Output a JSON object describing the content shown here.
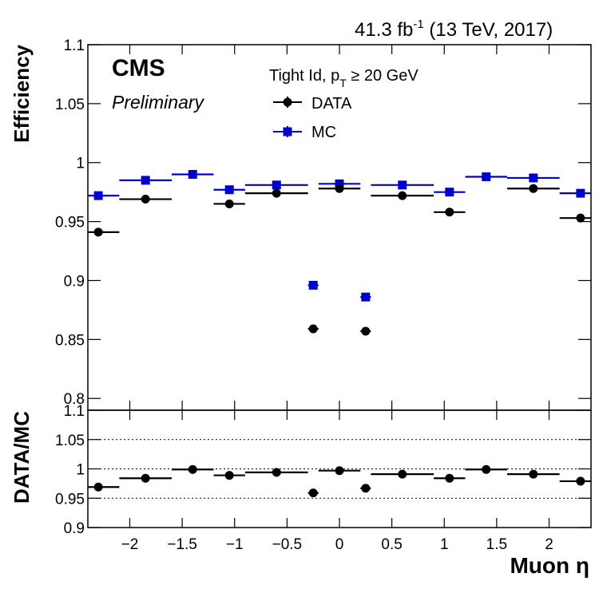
{
  "header": {
    "lumi": "41.3 fb",
    "lumi_exp": "-1",
    "energy": " (13 TeV, 2017)"
  },
  "branding": {
    "experiment": "CMS",
    "status": "Preliminary"
  },
  "legend": {
    "title_main": "Tight Id, p",
    "title_sub": "T",
    "title_rest": " ≥ 20 GeV",
    "entries": [
      "DATA",
      "MC"
    ],
    "placement": "top-center"
  },
  "colors": {
    "data": "#000000",
    "mc": "#0000cc"
  },
  "chart_data": [
    {
      "type": "scatter",
      "panel": "efficiency",
      "ylabel": "Efficiency",
      "ylim": [
        0.79,
        1.1
      ],
      "xlim": [
        -2.4,
        2.4
      ],
      "yticks": [
        "0.8",
        "0.85",
        "0.9",
        "0.95",
        "1",
        "1.05",
        "1.1"
      ],
      "series": [
        {
          "name": "DATA",
          "points": [
            {
              "x": -2.3,
              "xlo": -2.4,
              "xhi": -2.1,
              "y": 0.941
            },
            {
              "x": -1.85,
              "xlo": -2.1,
              "xhi": -1.6,
              "y": 0.969
            },
            {
              "x": -1.05,
              "xlo": -1.2,
              "xhi": -0.9,
              "y": 0.965
            },
            {
              "x": -0.6,
              "xlo": -0.9,
              "xhi": -0.3,
              "y": 0.974
            },
            {
              "x": -0.25,
              "xlo": -0.3,
              "xhi": -0.2,
              "y": 0.859
            },
            {
              "x": 0.0,
              "xlo": -0.2,
              "xhi": 0.2,
              "y": 0.978
            },
            {
              "x": 0.25,
              "xlo": 0.2,
              "xhi": 0.3,
              "y": 0.857
            },
            {
              "x": 0.6,
              "xlo": 0.3,
              "xhi": 0.9,
              "y": 0.972
            },
            {
              "x": 1.05,
              "xlo": 0.9,
              "xhi": 1.2,
              "y": 0.958
            },
            {
              "x": 1.85,
              "xlo": 1.6,
              "xhi": 2.1,
              "y": 0.978
            },
            {
              "x": 2.3,
              "xlo": 2.1,
              "xhi": 2.4,
              "y": 0.953
            }
          ]
        },
        {
          "name": "MC",
          "points": [
            {
              "x": -2.3,
              "xlo": -2.4,
              "xhi": -2.1,
              "y": 0.972
            },
            {
              "x": -1.85,
              "xlo": -2.1,
              "xhi": -1.6,
              "y": 0.985
            },
            {
              "x": -1.4,
              "xlo": -1.6,
              "xhi": -1.2,
              "y": 0.99
            },
            {
              "x": -1.05,
              "xlo": -1.2,
              "xhi": -0.9,
              "y": 0.977
            },
            {
              "x": -0.6,
              "xlo": -0.9,
              "xhi": -0.3,
              "y": 0.981
            },
            {
              "x": -0.25,
              "xlo": -0.3,
              "xhi": -0.2,
              "y": 0.896
            },
            {
              "x": 0.0,
              "xlo": -0.2,
              "xhi": 0.2,
              "y": 0.982
            },
            {
              "x": 0.25,
              "xlo": 0.2,
              "xhi": 0.3,
              "y": 0.886
            },
            {
              "x": 0.6,
              "xlo": 0.3,
              "xhi": 0.9,
              "y": 0.981
            },
            {
              "x": 1.05,
              "xlo": 0.9,
              "xhi": 1.2,
              "y": 0.975
            },
            {
              "x": 1.4,
              "xlo": 1.2,
              "xhi": 1.6,
              "y": 0.988
            },
            {
              "x": 1.85,
              "xlo": 1.6,
              "xhi": 2.1,
              "y": 0.987
            },
            {
              "x": 2.3,
              "xlo": 2.1,
              "xhi": 2.4,
              "y": 0.974
            }
          ]
        }
      ]
    },
    {
      "type": "scatter",
      "panel": "ratio",
      "ylabel": "DATA/MC",
      "xlabel": "Muon η",
      "ylim": [
        0.9,
        1.1
      ],
      "xlim": [
        -2.4,
        2.4
      ],
      "yticks": [
        "0.9",
        "0.95",
        "1",
        "1.05",
        "1.1"
      ],
      "xticks": [
        "−2",
        "−1.5",
        "−1",
        "−0.5",
        "0",
        "0.5",
        "1",
        "1.5",
        "2"
      ],
      "grid_lines_y": [
        0.95,
        1.0,
        1.05
      ],
      "series": [
        {
          "name": "DATA/MC",
          "points": [
            {
              "x": -2.3,
              "xlo": -2.4,
              "xhi": -2.1,
              "y": 0.969
            },
            {
              "x": -1.85,
              "xlo": -2.1,
              "xhi": -1.6,
              "y": 0.984
            },
            {
              "x": -1.4,
              "xlo": -1.6,
              "xhi": -1.2,
              "y": 0.999
            },
            {
              "x": -1.05,
              "xlo": -1.2,
              "xhi": -0.9,
              "y": 0.989
            },
            {
              "x": -0.6,
              "xlo": -0.9,
              "xhi": -0.3,
              "y": 0.994
            },
            {
              "x": -0.25,
              "xlo": -0.3,
              "xhi": -0.2,
              "y": 0.959
            },
            {
              "x": 0.0,
              "xlo": -0.2,
              "xhi": 0.2,
              "y": 0.997
            },
            {
              "x": 0.25,
              "xlo": 0.2,
              "xhi": 0.3,
              "y": 0.967
            },
            {
              "x": 0.6,
              "xlo": 0.3,
              "xhi": 0.9,
              "y": 0.991
            },
            {
              "x": 1.05,
              "xlo": 0.9,
              "xhi": 1.2,
              "y": 0.984
            },
            {
              "x": 1.4,
              "xlo": 1.2,
              "xhi": 1.6,
              "y": 0.999
            },
            {
              "x": 1.85,
              "xlo": 1.6,
              "xhi": 2.1,
              "y": 0.991
            },
            {
              "x": 2.3,
              "xlo": 2.1,
              "xhi": 2.4,
              "y": 0.979
            }
          ]
        }
      ]
    }
  ]
}
